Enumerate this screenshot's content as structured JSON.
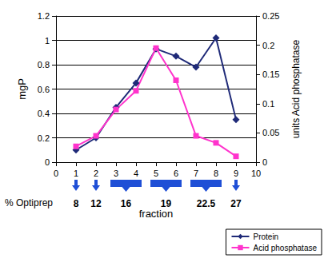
{
  "chart_data": {
    "type": "line",
    "x_label": "fraction",
    "y_label": "mgP",
    "y2_label": "units Acid phosphatase",
    "xlim": [
      0,
      10
    ],
    "xticks": [
      0,
      1,
      2,
      3,
      4,
      5,
      6,
      7,
      8,
      9,
      10
    ],
    "ylim": [
      0,
      1.2
    ],
    "yticks": [
      0,
      0.2,
      0.4,
      0.6,
      0.8,
      1,
      1.2
    ],
    "y2lim": [
      0,
      0.25
    ],
    "y2ticks": [
      0,
      0.05,
      0.1,
      0.15,
      0.2,
      0.25
    ],
    "grid": true,
    "legend": "lower right",
    "x": [
      1,
      2,
      3,
      4,
      5,
      6,
      7,
      8,
      9
    ],
    "series": [
      {
        "name": "Protein",
        "color": "#1f2a78",
        "marker": "diamond",
        "values": [
          0.1,
          0.2,
          0.45,
          0.65,
          0.93,
          0.87,
          0.78,
          1.02,
          0.35
        ]
      },
      {
        "name": "Acid phosphatase",
        "color": "#ff33cc",
        "marker": "square",
        "axis": "y2",
        "values": [
          0.027,
          0.045,
          0.09,
          0.122,
          0.195,
          0.14,
          0.045,
          0.033,
          0.01
        ]
      }
    ],
    "annotations": {
      "label": "% Optiprep",
      "color": "#1f4fd6",
      "items": [
        {
          "from": 1,
          "to": 1,
          "text": "8"
        },
        {
          "from": 2,
          "to": 2,
          "text": "12"
        },
        {
          "from": 3,
          "to": 4,
          "text": "16"
        },
        {
          "from": 5,
          "to": 6,
          "text": "19"
        },
        {
          "from": 7,
          "to": 8,
          "text": "22.5"
        },
        {
          "from": 9,
          "to": 9,
          "text": "27"
        }
      ]
    }
  }
}
